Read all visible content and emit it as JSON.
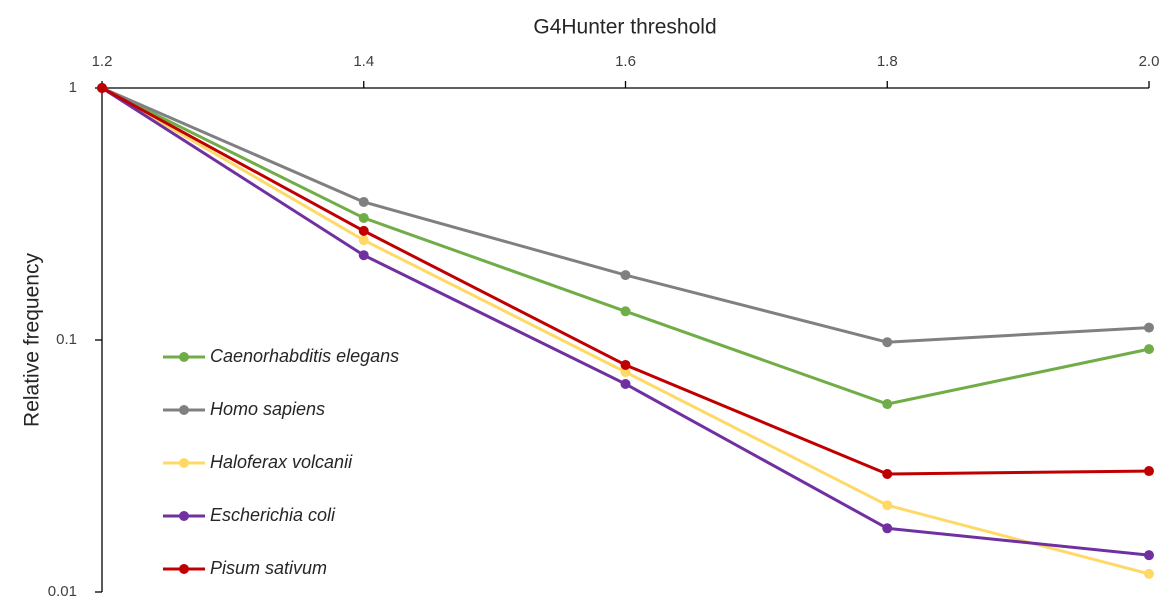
{
  "chart_data": {
    "type": "line",
    "x_label": "G4Hunter threshold",
    "y_label": "Relative frequency",
    "x": [
      1.2,
      1.4,
      1.6,
      1.8,
      2.0
    ],
    "xlim": [
      1.2,
      2.0
    ],
    "xticks": [
      1.2,
      1.4,
      1.6,
      1.8,
      {
        "value": 2.0,
        "label": "2.0"
      }
    ],
    "ylim": [
      0.01,
      1
    ],
    "yticks": [
      1,
      0.1,
      0.01
    ],
    "y_log": true,
    "x_axis_position": "top",
    "grid": false,
    "legend_position": "lower left",
    "series": [
      {
        "name": "Caenorhabditis elegans",
        "color": "#70ad47",
        "values": [
          1,
          0.305,
          0.13,
          0.0557,
          0.092
        ]
      },
      {
        "name": "Homo sapiens",
        "color": "#808080",
        "values": [
          1,
          0.353,
          0.181,
          0.098,
          0.112
        ]
      },
      {
        "name": "Haloferax volcanii",
        "color": "#ffd966",
        "values": [
          1,
          0.249,
          0.0746,
          0.0221,
          0.0118
        ]
      },
      {
        "name": "Escherichia coli",
        "color": "#7030a0",
        "values": [
          1,
          0.217,
          0.0669,
          0.0179,
          0.014
        ]
      },
      {
        "name": "Pisum sativum",
        "color": "#c00000",
        "values": [
          1,
          0.271,
          0.0796,
          0.0294,
          0.0302
        ]
      }
    ]
  }
}
